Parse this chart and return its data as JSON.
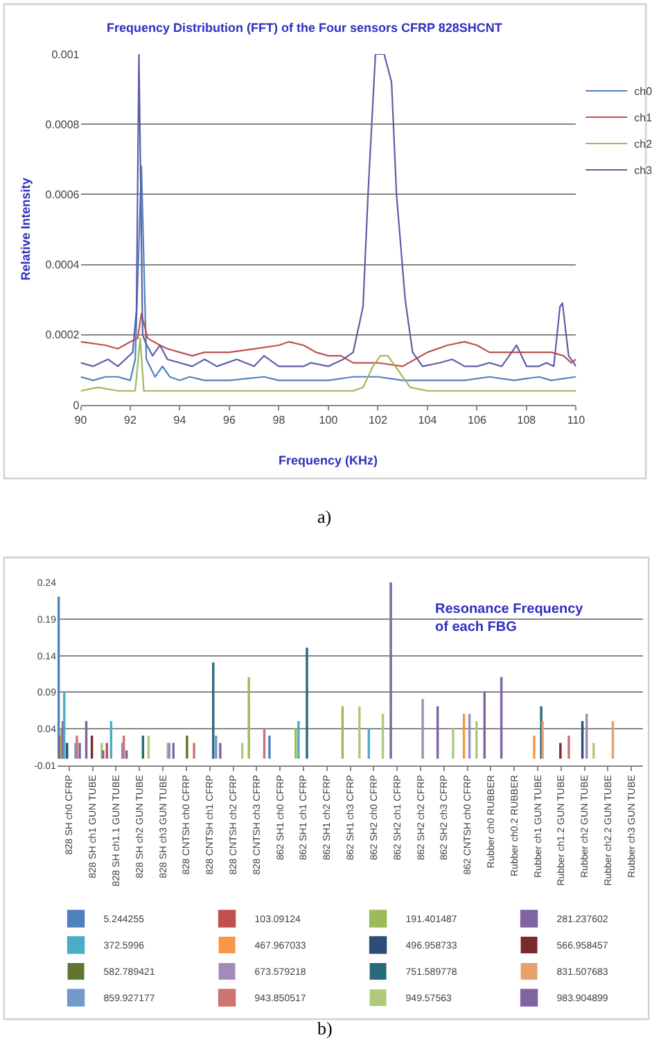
{
  "chart_data": [
    {
      "type": "line",
      "title": "Frequency Distribution (FFT) of the Four sensors CFRP 828SHCNT",
      "xlabel": "Frequency (KHz)",
      "ylabel": "Relative Intensity",
      "xlim": [
        90,
        110
      ],
      "xticks": [
        90,
        92,
        94,
        96,
        98,
        100,
        102,
        104,
        106,
        108,
        110
      ],
      "ylim": [
        0,
        0.001
      ],
      "yticks": [
        0,
        0.0002,
        0.0004,
        0.0006,
        0.0008,
        0.001
      ],
      "grid": "y",
      "legend": "right",
      "annotations": [
        "a)"
      ],
      "series": [
        {
          "name": "ch0",
          "color": "#4F81BD",
          "x": [
            90,
            90.5,
            91,
            91.5,
            92,
            92.2,
            92.45,
            92.65,
            93,
            93.3,
            93.6,
            94,
            94.4,
            95,
            96,
            97.4,
            98,
            99,
            100,
            101,
            102,
            103,
            104,
            104.7,
            105.5,
            106.5,
            107.5,
            108.5,
            109,
            110
          ],
          "values": [
            8e-05,
            7e-05,
            8e-05,
            8e-05,
            7e-05,
            0.00013,
            0.00068,
            0.00013,
            8e-05,
            0.00011,
            8e-05,
            7e-05,
            8e-05,
            7e-05,
            7e-05,
            8e-05,
            7e-05,
            7e-05,
            7e-05,
            8e-05,
            8e-05,
            7e-05,
            7e-05,
            7e-05,
            7e-05,
            8e-05,
            7e-05,
            8e-05,
            7e-05,
            8e-05
          ]
        },
        {
          "name": "ch1",
          "color": "#C0504D",
          "x": [
            90,
            91,
            91.5,
            92,
            92.3,
            92.45,
            92.7,
            93.2,
            93.5,
            94,
            94.5,
            95,
            96,
            97,
            98,
            98.4,
            99,
            99.5,
            100,
            100.5,
            101,
            102,
            103,
            103.5,
            104,
            104.8,
            105.5,
            106,
            106.5,
            107.5,
            108,
            109,
            109.5,
            109.8,
            110
          ],
          "values": [
            0.00018,
            0.00017,
            0.00016,
            0.00018,
            0.00019,
            0.00026,
            0.00019,
            0.00017,
            0.00016,
            0.00015,
            0.00014,
            0.00015,
            0.00015,
            0.00016,
            0.00017,
            0.00018,
            0.00017,
            0.00015,
            0.00014,
            0.00014,
            0.00012,
            0.00012,
            0.00011,
            0.00013,
            0.00015,
            0.00017,
            0.00018,
            0.00017,
            0.00015,
            0.00015,
            0.00015,
            0.00015,
            0.00014,
            0.00012,
            0.00013
          ]
        },
        {
          "name": "ch2",
          "color": "#9BBB59",
          "x": [
            90,
            90.7,
            91.5,
            92.2,
            92.4,
            92.55,
            94,
            96,
            98,
            100,
            101,
            101.4,
            101.8,
            102.1,
            102.4,
            102.8,
            103.3,
            104,
            106,
            108,
            110
          ],
          "values": [
            4e-05,
            5e-05,
            4e-05,
            4e-05,
            0.00019,
            4e-05,
            4e-05,
            4e-05,
            4e-05,
            4e-05,
            4e-05,
            5e-05,
            0.00011,
            0.00014,
            0.00014,
            0.0001,
            5e-05,
            4e-05,
            4e-05,
            4e-05,
            4e-05
          ]
        },
        {
          "name": "ch3",
          "color": "#5B5EA6",
          "x": [
            90,
            90.5,
            91.1,
            91.5,
            91.8,
            92.1,
            92.25,
            92.35,
            92.5,
            92.6,
            92.9,
            93.2,
            93.5,
            94,
            94.5,
            95,
            95.5,
            96.3,
            97,
            97.4,
            98,
            99,
            99.3,
            100,
            100.6,
            101,
            101.4,
            101.6,
            101.9,
            102.25,
            102.55,
            102.75,
            103.1,
            103.4,
            103.8,
            104.5,
            105,
            105.5,
            106,
            106.5,
            107,
            107.6,
            108,
            108.5,
            108.8,
            109.1,
            109.35,
            109.45,
            109.7,
            110
          ],
          "values": [
            0.00012,
            0.00011,
            0.00013,
            0.00011,
            0.00013,
            0.00015,
            0.00027,
            0.001,
            0.0002,
            0.00018,
            0.00014,
            0.00017,
            0.00013,
            0.00012,
            0.00011,
            0.00013,
            0.00011,
            0.00013,
            0.00011,
            0.00014,
            0.00011,
            0.00011,
            0.00012,
            0.00011,
            0.00013,
            0.00015,
            0.00028,
            0.0006,
            0.001,
            0.001,
            0.00092,
            0.0006,
            0.0003,
            0.00015,
            0.00011,
            0.00012,
            0.00013,
            0.00011,
            0.00011,
            0.00012,
            0.00011,
            0.00017,
            0.00011,
            0.00011,
            0.00012,
            0.00011,
            0.00028,
            0.00029,
            0.00014,
            0.00011
          ]
        }
      ]
    },
    {
      "type": "bar",
      "title": "Resonance Frequency\nof each FBG",
      "ylim": [
        -0.01,
        0.24
      ],
      "yticks": [
        -0.01,
        0.04,
        0.09,
        0.14,
        0.19,
        0.24
      ],
      "grid": "y",
      "legend": "bottom",
      "annotations": [
        "b)"
      ],
      "categories": [
        "828 SH ch0 CFRP",
        "828 SH ch1 GUN TUBE",
        "828 SH ch1.1 GUN TUBE",
        "828 SH ch2 GUN TUBE",
        "828 SH ch3 GUN TUBE",
        "828 CNTSH ch0 CFRP",
        "828 CNTSH ch1 CFRP",
        "828 CNTSH ch2 CFRP",
        "828 CNTSH ch3 CFRP",
        "862 SH1 ch0 CFRP",
        "862 SH1 ch1 CFRP",
        "862 SH1 ch2 CFRP",
        "862 SH1 ch3 CFRP",
        "862 SH2 ch0 CFRP",
        "862 SH2 ch1 CFRP",
        "862 SH2 ch2 CFRP",
        "862 SH2 ch3 CFRP",
        "862 CNTSH ch0 CFRP",
        "Rubber ch0 RUBBER",
        "Rubber ch0.2 RUBBER",
        "Rubber ch1 GUN TUBE",
        "Rubber ch1.2 GUN TUBE",
        "Rubber ch2 GUN TUBE",
        "Rubber ch2.2 GUN TUBE",
        "Rubber ch3 GUN TUBE"
      ],
      "series": [
        {
          "name": "5.244255",
          "color": "#4F81BD",
          "values": [
            0.22,
            0,
            0,
            0,
            0,
            0,
            0,
            0,
            0,
            0.03,
            0,
            0,
            0,
            0,
            0,
            0,
            0,
            0,
            0,
            0,
            0,
            0,
            0,
            0,
            0
          ]
        },
        {
          "name": "103.09124",
          "color": "#C0504D",
          "values": [
            0.03,
            0,
            0.02,
            0,
            0,
            0,
            0,
            0,
            0,
            0,
            0,
            0,
            0,
            0,
            0,
            0,
            0,
            0,
            0,
            0,
            0,
            0,
            0,
            0,
            0
          ]
        },
        {
          "name": "191.401487",
          "color": "#9BBB59",
          "values": [
            0.04,
            0,
            0,
            0,
            0,
            0,
            0,
            0,
            0.11,
            0,
            0.04,
            0,
            0.07,
            0,
            0,
            0,
            0,
            0,
            0,
            0,
            0,
            0,
            0,
            0,
            0
          ]
        },
        {
          "name": "281.237602",
          "color": "#8064A2",
          "values": [
            0.05,
            0.05,
            0,
            0,
            0,
            0,
            0,
            0,
            0,
            0,
            0,
            0,
            0,
            0,
            0.24,
            0,
            0.07,
            0,
            0.09,
            0,
            0,
            0,
            0,
            0,
            0
          ]
        },
        {
          "name": "372.5996",
          "color": "#4BACC6",
          "values": [
            0.09,
            0,
            0.05,
            0,
            0,
            0,
            0,
            0,
            0,
            0,
            0.05,
            0,
            0,
            0.04,
            0,
            0,
            0,
            0,
            0,
            0,
            0,
            0,
            0,
            0,
            0
          ]
        },
        {
          "name": "467.967033",
          "color": "#F79646",
          "values": [
            0,
            0,
            0,
            0,
            0,
            0,
            0,
            0,
            0,
            0,
            0,
            0,
            0,
            0,
            0,
            0,
            0,
            0.06,
            0,
            0,
            0.03,
            0,
            0,
            0,
            0
          ]
        },
        {
          "name": "496.958733",
          "color": "#2C4D75",
          "values": [
            0.02,
            0,
            0,
            0,
            0,
            0,
            0,
            0,
            0,
            0,
            0,
            0,
            0,
            0,
            0,
            0,
            0,
            0,
            0,
            0,
            0,
            0,
            0.05,
            0,
            0
          ]
        },
        {
          "name": "566.958457",
          "color": "#772C2A",
          "values": [
            0,
            0.03,
            0,
            0,
            0,
            0,
            0,
            0,
            0,
            0,
            0,
            0,
            0,
            0,
            0,
            0,
            0,
            0,
            0,
            0,
            0,
            0.02,
            0,
            0,
            0
          ]
        },
        {
          "name": "582.789421",
          "color": "#5F7530",
          "values": [
            0,
            0,
            0,
            0,
            0,
            0.03,
            0,
            0,
            0,
            0,
            0,
            0,
            0,
            0,
            0,
            0,
            0,
            0,
            0,
            0,
            0,
            0,
            0,
            0,
            0
          ]
        },
        {
          "name": "673.579218",
          "color": "#A08CB7",
          "values": [
            0,
            0,
            0,
            0,
            0,
            0,
            0,
            0,
            0,
            0,
            0,
            0,
            0,
            0,
            0,
            0.08,
            0,
            0.06,
            0,
            0,
            0,
            0,
            0.06,
            0,
            0
          ]
        },
        {
          "name": "751.589778",
          "color": "#276A7C",
          "values": [
            0,
            0,
            0,
            0.03,
            0,
            0,
            0.13,
            0,
            0,
            0,
            0.15,
            0,
            0,
            0,
            0,
            0,
            0,
            0,
            0,
            0,
            0.07,
            0,
            0,
            0,
            0
          ]
        },
        {
          "name": "831.507683",
          "color": "#E6A06E",
          "values": [
            0,
            0,
            0,
            0,
            0.02,
            0,
            0,
            0,
            0,
            0,
            0,
            0,
            0,
            0,
            0,
            0,
            0,
            0,
            0,
            0,
            0.05,
            0,
            0,
            0.05,
            0
          ]
        },
        {
          "name": "859.927177",
          "color": "#729ACA",
          "values": [
            0.02,
            0,
            0.02,
            0,
            0.02,
            0,
            0.03,
            0,
            0,
            0,
            0,
            0,
            0,
            0,
            0,
            0,
            0,
            0,
            0,
            0,
            0,
            0,
            0,
            0,
            0
          ]
        },
        {
          "name": "943.850517",
          "color": "#CD7371",
          "values": [
            0.03,
            0,
            0.03,
            0,
            0,
            0.02,
            0,
            0,
            0.04,
            0,
            0,
            0,
            0,
            0,
            0,
            0,
            0,
            0,
            0,
            0,
            0,
            0.03,
            0,
            0,
            0
          ]
        },
        {
          "name": "949.57563",
          "color": "#AFC97A",
          "values": [
            0,
            0.02,
            0,
            0.03,
            0,
            0,
            0,
            0.02,
            0,
            0,
            0,
            0,
            0.07,
            0.06,
            0,
            0,
            0.04,
            0.05,
            0,
            0,
            0,
            0,
            0.02,
            0,
            0
          ]
        },
        {
          "name": "983.904899",
          "color": "#8064A2",
          "values": [
            0.02,
            0.01,
            0.01,
            0,
            0.02,
            0,
            0.02,
            0,
            0,
            0,
            0,
            0,
            0,
            0,
            0,
            0,
            0,
            0,
            0.11,
            0,
            0,
            0,
            0,
            0,
            0
          ]
        }
      ]
    }
  ]
}
